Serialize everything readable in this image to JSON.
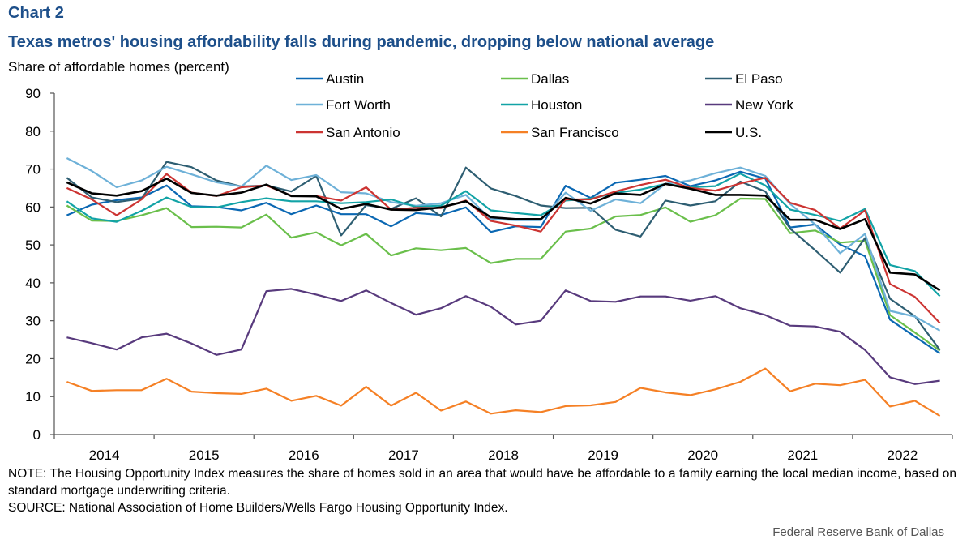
{
  "header": {
    "title": "Chart 2",
    "subtitle": "Texas metros' housing affordability falls during pandemic, dropping below national average"
  },
  "footer": {
    "note_line1": "NOTE: The Housing Opportunity Index measures the share of homes sold in an area that would have be affordable to a family earning the local median income, based on standard mortgage underwriting criteria.",
    "source": "SOURCE: National Association of Home Builders/Wells Fargo Housing Opportunity Index.",
    "credit": "Federal Reserve Bank of Dallas"
  },
  "chart_data": {
    "type": "line",
    "title": "Texas metros' housing affordability falls during pandemic, dropping below national average",
    "ylabel": "Share of affordable homes (percent)",
    "xlabel": "",
    "ylim": [
      0,
      90
    ],
    "yticks": [
      0,
      10,
      20,
      30,
      40,
      50,
      60,
      70,
      80,
      90
    ],
    "xtick_labels": [
      "2014",
      "2015",
      "2016",
      "2017",
      "2018",
      "2019",
      "2020",
      "2021",
      "2022"
    ],
    "x": [
      "2014Q1",
      "2014Q2",
      "2014Q3",
      "2014Q4",
      "2015Q1",
      "2015Q2",
      "2015Q3",
      "2015Q4",
      "2016Q1",
      "2016Q2",
      "2016Q3",
      "2016Q4",
      "2017Q1",
      "2017Q2",
      "2017Q3",
      "2017Q4",
      "2018Q1",
      "2018Q2",
      "2018Q3",
      "2018Q4",
      "2019Q1",
      "2019Q2",
      "2019Q3",
      "2019Q4",
      "2020Q1",
      "2020Q2",
      "2020Q3",
      "2020Q4",
      "2021Q1",
      "2021Q2",
      "2021Q3",
      "2021Q4",
      "2022Q1",
      "2022Q2",
      "2022Q3",
      "2022Q4"
    ],
    "grid": false,
    "legend_placement": "top",
    "series": [
      {
        "name": "Austin",
        "color": "#0b68b3",
        "values": [
          57.8,
          60.6,
          61.8,
          62.5,
          65.7,
          60.2,
          60.0,
          59.1,
          61.1,
          58.1,
          60.4,
          58.1,
          58.1,
          54.9,
          58.4,
          57.9,
          59.9,
          53.4,
          54.9,
          54.7,
          65.6,
          62.4,
          66.4,
          67.2,
          68.2,
          65.5,
          67.0,
          69.3,
          67.5,
          54.6,
          55.4,
          50.1,
          47.0,
          30.3,
          25.8,
          21.4
        ]
      },
      {
        "name": "Dallas",
        "color": "#6abf4b",
        "values": [
          60.4,
          56.4,
          56.3,
          57.8,
          59.7,
          54.7,
          54.8,
          54.6,
          58.0,
          51.9,
          53.3,
          49.9,
          52.9,
          47.2,
          49.1,
          48.6,
          49.2,
          45.2,
          46.3,
          46.3,
          53.5,
          54.3,
          57.5,
          57.9,
          59.9,
          56.1,
          57.8,
          62.2,
          62.1,
          53.1,
          53.8,
          50.6,
          51.1,
          31.5,
          26.9,
          22.1
        ]
      },
      {
        "name": "El Paso",
        "color": "#2e5e72",
        "values": [
          67.7,
          62.5,
          61.3,
          62.2,
          71.9,
          70.5,
          67.0,
          65.4,
          65.7,
          64.1,
          68.2,
          52.5,
          60.5,
          59.5,
          62.3,
          57.5,
          70.4,
          64.9,
          62.9,
          60.4,
          59.7,
          59.8,
          54.0,
          52.2,
          61.7,
          60.4,
          61.5,
          66.7,
          64.1,
          54.3,
          48.6,
          42.7,
          51.8,
          35.8,
          31.2,
          22.3
        ]
      },
      {
        "name": "Fort Worth",
        "color": "#6eb1d8",
        "values": [
          72.9,
          69.5,
          65.2,
          67.0,
          70.6,
          68.6,
          66.5,
          65.4,
          70.9,
          67.1,
          68.4,
          63.9,
          63.6,
          61.3,
          60.3,
          61.0,
          63.2,
          56.8,
          56.5,
          56.5,
          63.8,
          59.0,
          62.0,
          61.0,
          66.1,
          67.0,
          68.9,
          70.4,
          68.2,
          60.8,
          55.4,
          47.8,
          52.9,
          32.6,
          31.1,
          27.4
        ]
      },
      {
        "name": "Houston",
        "color": "#12a3a6",
        "values": [
          61.5,
          57.0,
          56.1,
          59.0,
          62.5,
          60.0,
          59.9,
          61.3,
          62.3,
          61.5,
          61.5,
          61.0,
          61.3,
          62.0,
          60.0,
          60.4,
          64.2,
          59.1,
          58.4,
          57.8,
          61.7,
          62.2,
          63.7,
          64.6,
          66.1,
          65.2,
          65.5,
          68.8,
          65.7,
          59.3,
          57.9,
          56.3,
          59.5,
          44.7,
          43.1,
          36.5
        ]
      },
      {
        "name": "New York",
        "color": "#583a7d",
        "values": [
          25.6,
          24.1,
          22.4,
          25.6,
          26.6,
          24.0,
          21.0,
          22.4,
          37.8,
          38.4,
          36.9,
          35.2,
          38.0,
          34.7,
          31.6,
          33.3,
          36.5,
          33.7,
          29.0,
          30.0,
          38.0,
          35.2,
          35.0,
          36.4,
          36.4,
          35.3,
          36.5,
          33.3,
          31.5,
          28.7,
          28.5,
          27.1,
          22.3,
          15.1,
          13.3,
          14.2
        ]
      },
      {
        "name": "San Antonio",
        "color": "#cc3432",
        "values": [
          65.0,
          62.0,
          57.8,
          62.0,
          68.7,
          63.8,
          62.9,
          65.2,
          65.7,
          63.0,
          62.9,
          61.7,
          65.2,
          59.3,
          59.8,
          59.7,
          61.7,
          56.3,
          55.1,
          53.5,
          62.0,
          62.0,
          64.1,
          65.8,
          67.2,
          65.0,
          64.3,
          66.2,
          67.7,
          61.1,
          59.2,
          54.3,
          59.1,
          39.7,
          36.3,
          29.4
        ]
      },
      {
        "name": "San Francisco",
        "color": "#f58025",
        "values": [
          13.9,
          11.5,
          11.7,
          11.7,
          14.7,
          11.3,
          10.9,
          10.7,
          12.1,
          8.9,
          10.2,
          7.6,
          12.6,
          7.6,
          11.0,
          6.3,
          8.7,
          5.5,
          6.4,
          5.9,
          7.5,
          7.7,
          8.6,
          12.3,
          11.1,
          10.4,
          11.9,
          13.9,
          17.4,
          11.4,
          13.4,
          13.0,
          14.4,
          7.4,
          8.9,
          4.9
        ]
      },
      {
        "name": "U.S.",
        "color": "#000000",
        "values": [
          66.5,
          63.6,
          63.0,
          64.2,
          67.5,
          63.7,
          63.0,
          63.8,
          65.9,
          62.9,
          62.8,
          59.5,
          60.8,
          59.3,
          59.2,
          59.9,
          61.5,
          57.3,
          56.8,
          56.8,
          62.4,
          60.9,
          63.6,
          63.2,
          66.1,
          64.8,
          63.2,
          63.2,
          63.0,
          56.6,
          56.6,
          54.2,
          56.8,
          42.7,
          42.2,
          38.0
        ]
      }
    ]
  }
}
